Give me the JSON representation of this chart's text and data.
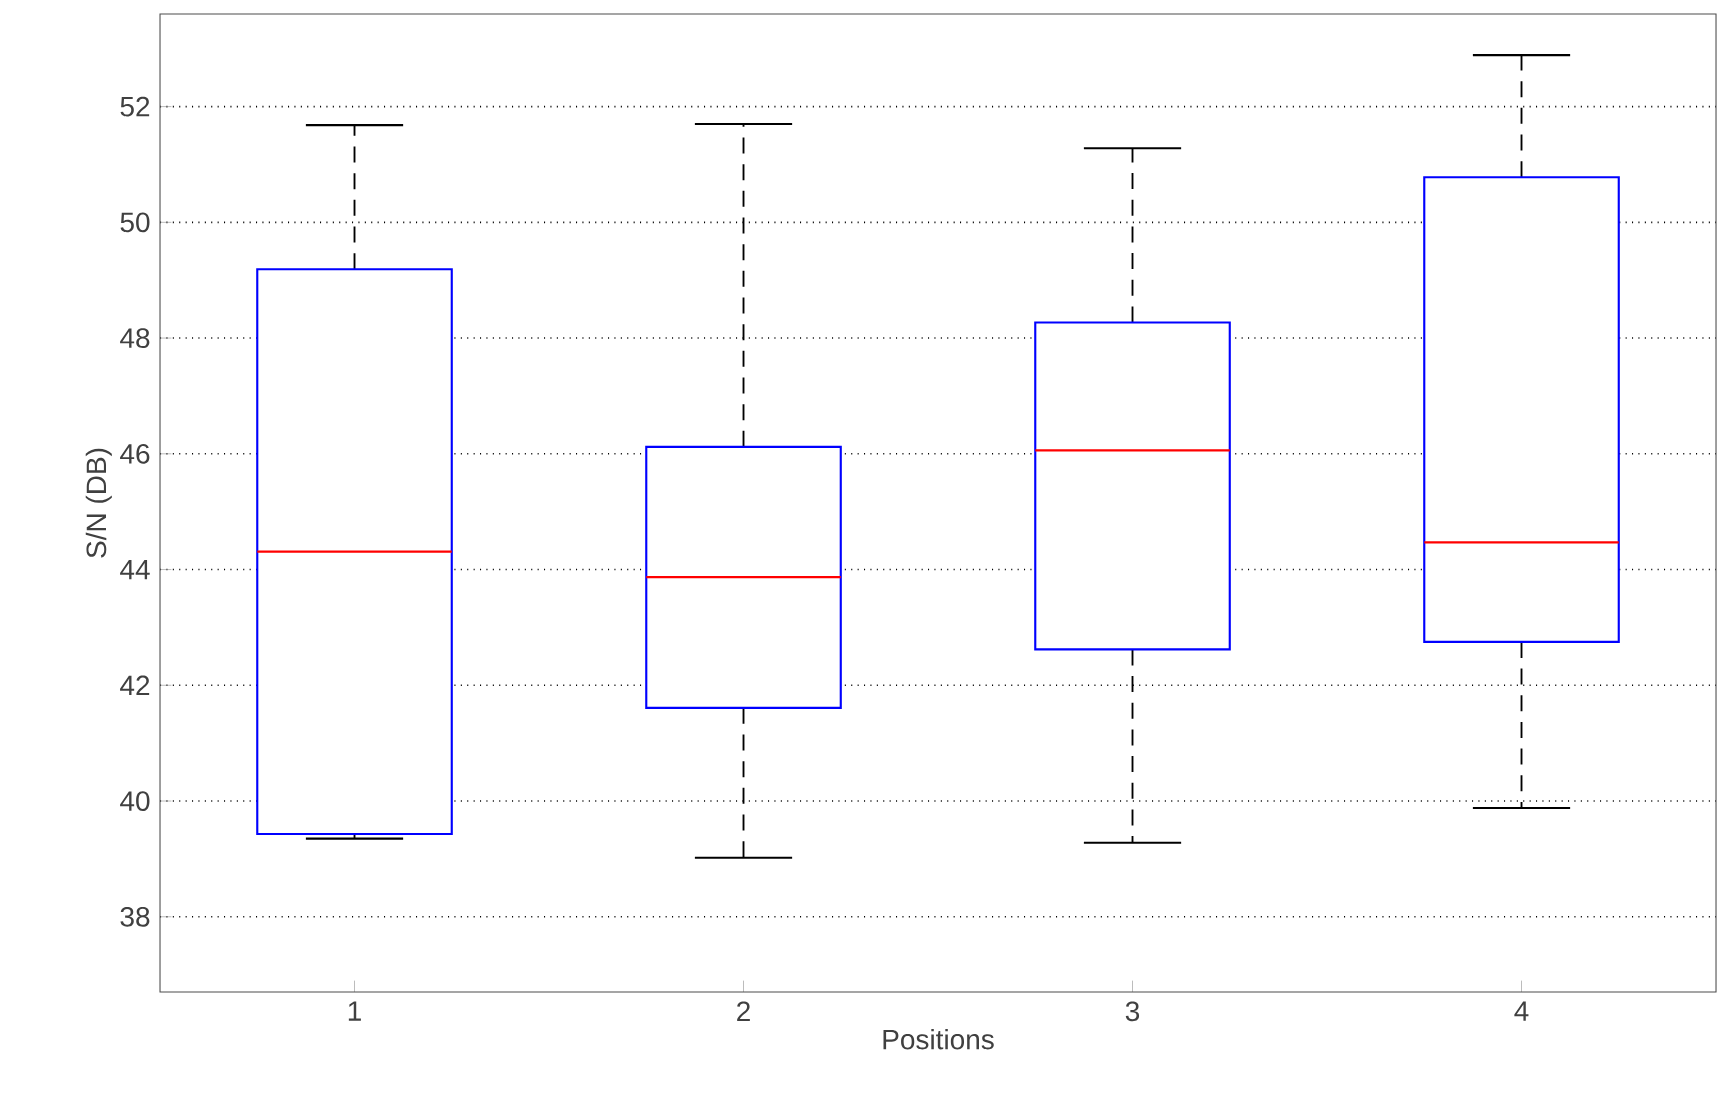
{
  "chart_data": {
    "type": "box",
    "xlabel": "Positions",
    "ylabel": "S/N (DB)",
    "categories": [
      "1",
      "2",
      "3",
      "4"
    ],
    "color": "#0000ff",
    "ylim": [
      36.7,
      53.6
    ],
    "yticks": [
      38,
      40,
      42,
      44,
      46,
      48,
      50,
      52
    ],
    "grid": "y",
    "boxes": [
      {
        "low": 39.35,
        "q1": 39.43,
        "median": 44.31,
        "q3": 49.19,
        "high": 51.68
      },
      {
        "low": 39.02,
        "q1": 41.61,
        "median": 43.87,
        "q3": 46.12,
        "high": 51.7
      },
      {
        "low": 39.28,
        "q1": 42.62,
        "median": 46.06,
        "q3": 48.27,
        "high": 51.28
      },
      {
        "low": 39.88,
        "q1": 42.75,
        "median": 44.47,
        "q3": 50.78,
        "high": 52.89
      }
    ]
  }
}
